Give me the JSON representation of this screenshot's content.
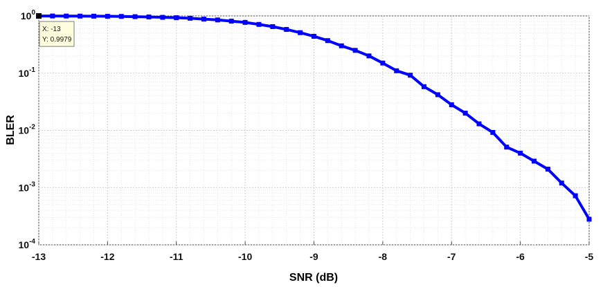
{
  "chart_data": {
    "type": "line",
    "title": "",
    "xlabel": "SNR (dB)",
    "ylabel": "BLER",
    "xlim": [
      -13,
      -5
    ],
    "ylim": [
      0.0001,
      1
    ],
    "yscale": "log",
    "grid": true,
    "xticks": [
      "-13",
      "-12",
      "-11",
      "-10",
      "-9",
      "-8",
      "-7",
      "-6",
      "-5"
    ],
    "yticks": [
      {
        "base": "10",
        "exp": "0",
        "value": 1
      },
      {
        "base": "10",
        "exp": "-1",
        "value": 0.1
      },
      {
        "base": "10",
        "exp": "-2",
        "value": 0.01
      },
      {
        "base": "10",
        "exp": "-3",
        "value": 0.001
      },
      {
        "base": "10",
        "exp": "-4",
        "value": 0.0001
      }
    ],
    "series": [
      {
        "color": "#0000ff",
        "x": [
          -13,
          -12.8,
          -12.6,
          -12.4,
          -12.2,
          -12,
          -11.8,
          -11.6,
          -11.4,
          -11.2,
          -11,
          -10.8,
          -10.6,
          -10.4,
          -10.2,
          -10,
          -9.8,
          -9.6,
          -9.4,
          -9.2,
          -9,
          -8.8,
          -8.6,
          -8.4,
          -8.2,
          -8,
          -7.8,
          -7.6,
          -7.4,
          -7.2,
          -7,
          -6.8,
          -6.6,
          -6.4,
          -6.2,
          -6,
          -5.8,
          -5.6,
          -5.4,
          -5.2,
          -5
        ],
        "y": [
          0.9979,
          0.997,
          0.995,
          0.993,
          0.99,
          0.985,
          0.98,
          0.97,
          0.96,
          0.945,
          0.93,
          0.91,
          0.88,
          0.85,
          0.81,
          0.77,
          0.71,
          0.65,
          0.58,
          0.51,
          0.44,
          0.37,
          0.3,
          0.25,
          0.2,
          0.15,
          0.11,
          0.092,
          0.058,
          0.042,
          0.028,
          0.02,
          0.013,
          0.0092,
          0.0051,
          0.004,
          0.0029,
          0.0021,
          0.0012,
          0.00072,
          0.00028
        ]
      }
    ],
    "datatip": {
      "x_text": "X: -13",
      "y_text": "Y: 0.9979",
      "x": -13,
      "y": 0.9979
    }
  }
}
